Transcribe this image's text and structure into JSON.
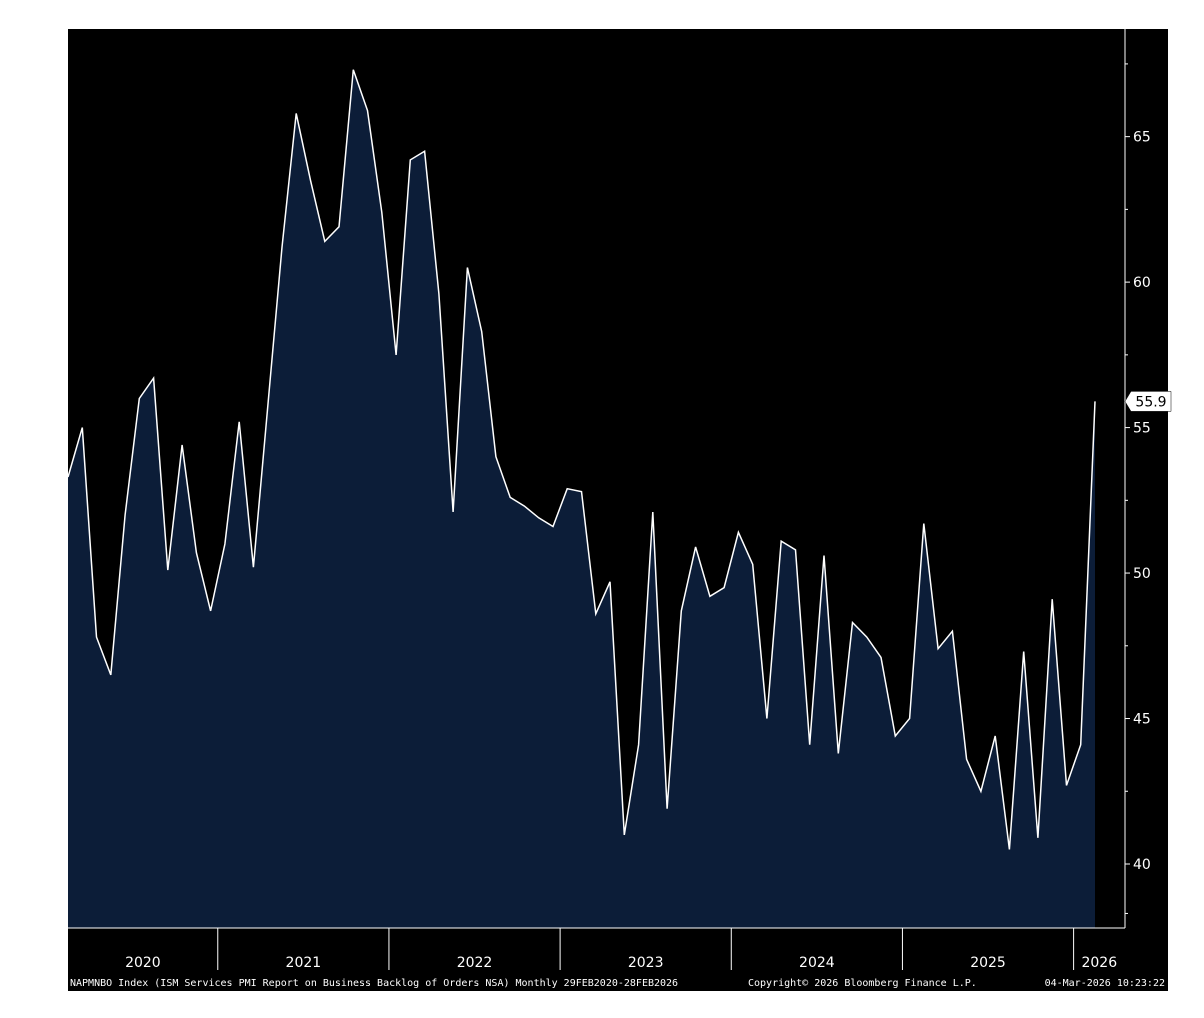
{
  "chart_data": {
    "type": "area",
    "title": "",
    "xlabel": "",
    "ylabel": "",
    "ylim": [
      37.8,
      68.7
    ],
    "xlim": [
      "2020-02",
      "2026-02"
    ],
    "yticks": [
      "40",
      "45",
      "50",
      "55",
      "60",
      "65"
    ],
    "ytick_values": [
      40,
      45,
      50,
      55,
      60,
      65
    ],
    "year_labels": [
      "2020",
      "2021",
      "2022",
      "2023",
      "2024",
      "2025",
      "2026"
    ],
    "grid": false,
    "legend": "none",
    "last_value_label": "55.9",
    "x": [
      "2020-02",
      "2020-03",
      "2020-04",
      "2020-05",
      "2020-06",
      "2020-07",
      "2020-08",
      "2020-09",
      "2020-10",
      "2020-11",
      "2020-12",
      "2021-01",
      "2021-02",
      "2021-03",
      "2021-04",
      "2021-05",
      "2021-06",
      "2021-07",
      "2021-08",
      "2021-09",
      "2021-10",
      "2021-11",
      "2021-12",
      "2022-01",
      "2022-02",
      "2022-03",
      "2022-04",
      "2022-05",
      "2022-06",
      "2022-07",
      "2022-08",
      "2022-09",
      "2022-10",
      "2022-11",
      "2022-12",
      "2023-01",
      "2023-02",
      "2023-03",
      "2023-04",
      "2023-05",
      "2023-06",
      "2023-07",
      "2023-08",
      "2023-09",
      "2023-10",
      "2023-11",
      "2023-12",
      "2024-01",
      "2024-02",
      "2024-03",
      "2024-04",
      "2024-05",
      "2024-06",
      "2024-07",
      "2024-08",
      "2024-09",
      "2024-10",
      "2024-11",
      "2024-12",
      "2025-01",
      "2025-02",
      "2025-03",
      "2025-04",
      "2025-05",
      "2025-06",
      "2025-07",
      "2025-08",
      "2025-09",
      "2025-10",
      "2025-11",
      "2025-12",
      "2026-01",
      "2026-02"
    ],
    "series": [
      {
        "values": [
          53.3,
          55.0,
          47.8,
          46.5,
          52.0,
          56.0,
          56.7,
          50.1,
          54.4,
          50.7,
          48.7,
          51.0,
          55.2,
          50.2,
          55.7,
          61.2,
          65.8,
          63.5,
          61.4,
          61.9,
          67.3,
          65.9,
          62.4,
          57.5,
          64.2,
          64.5,
          59.6,
          52.1,
          60.5,
          58.3,
          54.0,
          52.6,
          52.3,
          51.9,
          51.6,
          52.9,
          52.8,
          48.6,
          49.7,
          41.0,
          44.1,
          52.1,
          41.9,
          48.7,
          50.9,
          49.2,
          49.5,
          51.4,
          50.3,
          45.0,
          51.1,
          50.8,
          44.1,
          50.6,
          43.8,
          48.3,
          47.8,
          47.1,
          44.4,
          45.0,
          51.7,
          47.4,
          48.0,
          43.6,
          42.5,
          44.4,
          40.5,
          47.3,
          40.9,
          49.1,
          42.7,
          44.1,
          55.9
        ]
      }
    ],
    "colors": {
      "area_fill": "#0c1d38",
      "line": "#ffffff",
      "background": "#000000",
      "text": "#ffffff"
    }
  },
  "footer": {
    "description": "NAPMNBO Index (ISM Services PMI Report on Business Backlog of Orders NSA) Monthly 29FEB2020-28FEB2026",
    "copyright": "Copyright© 2026 Bloomberg Finance L.P.",
    "timestamp": "04-Mar-2026 10:23:22"
  }
}
